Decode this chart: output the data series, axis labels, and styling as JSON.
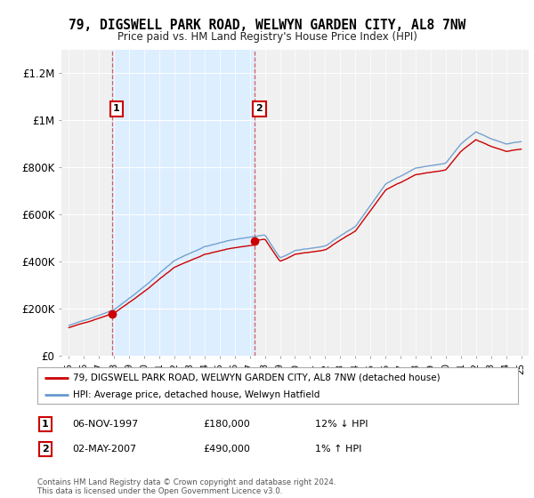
{
  "title": "79, DIGSWELL PARK ROAD, WELWYN GARDEN CITY, AL8 7NW",
  "subtitle": "Price paid vs. HM Land Registry's House Price Index (HPI)",
  "legend_line1": "79, DIGSWELL PARK ROAD, WELWYN GARDEN CITY, AL8 7NW (detached house)",
  "legend_line2": "HPI: Average price, detached house, Welwyn Hatfield",
  "annotation1_label": "1",
  "annotation1_date": "06-NOV-1997",
  "annotation1_price": "£180,000",
  "annotation1_hpi": "12% ↓ HPI",
  "annotation2_label": "2",
  "annotation2_date": "02-MAY-2007",
  "annotation2_price": "£490,000",
  "annotation2_hpi": "1% ↑ HPI",
  "footer": "Contains HM Land Registry data © Crown copyright and database right 2024.\nThis data is licensed under the Open Government Licence v3.0.",
  "sale_color": "#cc0000",
  "hpi_color": "#6699cc",
  "shade_color": "#ddeeff",
  "sale1_x": 1997.85,
  "sale1_y": 180000,
  "sale2_x": 2007.33,
  "sale2_y": 490000,
  "xlim": [
    1994.5,
    2025.5
  ],
  "ylim": [
    0,
    1300000
  ],
  "yticks": [
    0,
    200000,
    400000,
    600000,
    800000,
    1000000,
    1200000
  ],
  "ytick_labels": [
    "£0",
    "£200K",
    "£400K",
    "£600K",
    "£800K",
    "£1M",
    "£1.2M"
  ],
  "background_color": "#ffffff",
  "plot_bg_color": "#f0f0f0"
}
